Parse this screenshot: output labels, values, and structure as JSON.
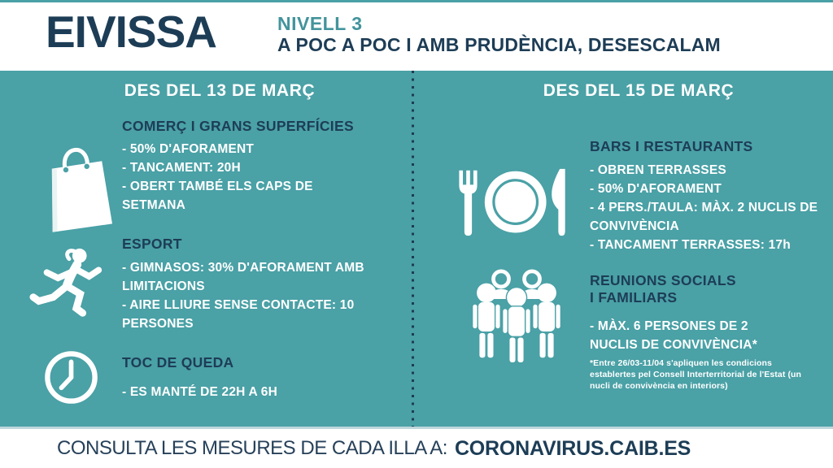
{
  "header": {
    "title": "EIVISSA",
    "level": "NIVELL 3",
    "subtitle": "A POC A POC I AMB PRUDÈNCIA, DESESCALAM"
  },
  "colors": {
    "teal_background": "#4AA1A6",
    "navy": "#1D3D56",
    "level_teal": "#43949C",
    "white": "#FFFFFF"
  },
  "left_column": {
    "date_heading": "DES DEL 13 DE MARÇ",
    "sections": [
      {
        "icon": "shopping-bag-icon",
        "title": "COMERÇ I GRANS SUPERFÍCIES",
        "items": [
          "- 50% D'AFORAMENT",
          "- TANCAMENT: 20H",
          "- OBERT TAMBÉ ELS CAPS DE SETMANA"
        ]
      },
      {
        "icon": "runner-icon",
        "title": "ESPORT",
        "items": [
          "- GIMNASOS: 30% D'AFORAMENT AMB LIMITACIONS",
          "- AIRE LLIURE SENSE CONTACTE: 10 PERSONES"
        ]
      },
      {
        "icon": "clock-icon",
        "title": "TOC DE QUEDA",
        "items": [
          "- ES MANTÉ DE 22H A 6H"
        ]
      }
    ]
  },
  "right_column": {
    "date_heading": "DES DEL 15 DE MARÇ",
    "sections": [
      {
        "icon": "restaurant-icon",
        "title": "BARS I RESTAURANTS",
        "items": [
          "- OBREN TERRASSES",
          "- 50% D'AFORAMENT",
          "- 4 PERS./TAULA: MÀX. 2 NUCLIS DE CONVIVÈNCIA",
          "- TANCAMENT TERRASSES: 17h"
        ]
      },
      {
        "icon": "people-group-icon",
        "title": "REUNIONS SOCIALS I FAMILIARS",
        "items": [
          "- MÀX. 6 PERSONES DE 2 NUCLIS DE CONVIVÈNCIA*"
        ],
        "footnote": "*Entre 26/03-11/04 s'apliquen les condicions establertes pel Consell Interterritorial de l'Estat (un nucli de convivència en interiors)"
      }
    ]
  },
  "footer": {
    "text": "CONSULTA LES MESURES DE CADA ILLA A:",
    "link": "CORONAVIRUS.CAIB.ES"
  }
}
